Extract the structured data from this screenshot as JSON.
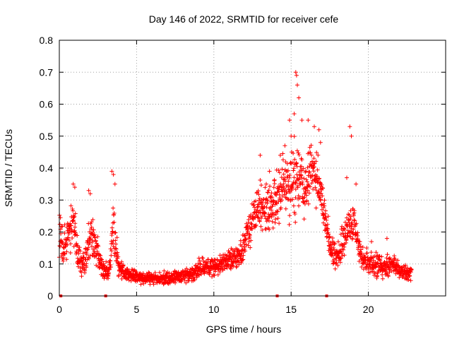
{
  "chart_data": {
    "type": "scatter",
    "title": "Day 146 of 2022, SRMTID for receiver cefe",
    "xlabel": "GPS time / hours",
    "ylabel": "SRMTID / TECUs",
    "xlim": [
      0,
      25
    ],
    "ylim": [
      0,
      0.8
    ],
    "xticks": [
      0,
      5,
      10,
      15,
      20
    ],
    "yticks": [
      0,
      0.1,
      0.2,
      0.3,
      0.4,
      0.5,
      0.6,
      0.7,
      0.8
    ],
    "xtick_labels": [
      "0",
      "5",
      "10",
      "15",
      "20"
    ],
    "ytick_labels": [
      "0",
      "0.1",
      "0.2",
      "0.3",
      "0.4",
      "0.5",
      "0.6",
      "0.7",
      "0.8"
    ],
    "grid": true,
    "marker": "+",
    "color": "#ff0000",
    "series": [
      {
        "name": "SRMTID",
        "envelope": {
          "x": [
            0,
            0.3,
            0.6,
            0.9,
            1.2,
            1.6,
            2.0,
            2.4,
            2.8,
            3.2,
            3.5,
            3.8,
            4.2,
            5,
            6,
            7,
            8,
            8.5,
            9,
            9.5,
            10,
            10.5,
            11,
            11.5,
            12,
            12.5,
            13,
            13.5,
            14,
            14.5,
            15,
            15.3,
            15.6,
            16,
            16.3,
            16.6,
            17,
            17.3,
            17.6,
            18,
            18.5,
            19,
            19.5,
            20,
            20.5,
            21,
            21.5,
            22,
            22.5,
            22.8
          ],
          "center": [
            0.18,
            0.15,
            0.2,
            0.25,
            0.12,
            0.1,
            0.2,
            0.15,
            0.08,
            0.07,
            0.2,
            0.1,
            0.07,
            0.06,
            0.055,
            0.055,
            0.06,
            0.07,
            0.09,
            0.09,
            0.09,
            0.1,
            0.12,
            0.11,
            0.16,
            0.25,
            0.28,
            0.27,
            0.3,
            0.33,
            0.35,
            0.38,
            0.36,
            0.33,
            0.4,
            0.38,
            0.3,
            0.22,
            0.14,
            0.13,
            0.2,
            0.24,
            0.13,
            0.1,
            0.1,
            0.09,
            0.1,
            0.08,
            0.075,
            0.07
          ],
          "spread": [
            0.07,
            0.07,
            0.07,
            0.08,
            0.05,
            0.04,
            0.08,
            0.06,
            0.03,
            0.03,
            0.1,
            0.04,
            0.025,
            0.02,
            0.02,
            0.02,
            0.02,
            0.025,
            0.035,
            0.03,
            0.035,
            0.035,
            0.04,
            0.04,
            0.05,
            0.07,
            0.08,
            0.08,
            0.08,
            0.1,
            0.12,
            0.15,
            0.13,
            0.1,
            0.12,
            0.1,
            0.08,
            0.07,
            0.05,
            0.05,
            0.07,
            0.08,
            0.05,
            0.04,
            0.04,
            0.035,
            0.04,
            0.03,
            0.03,
            0.025
          ]
        },
        "peaks": [
          {
            "x": 0.9,
            "y": 0.35
          },
          {
            "x": 1.0,
            "y": 0.34
          },
          {
            "x": 1.9,
            "y": 0.33
          },
          {
            "x": 2.0,
            "y": 0.32
          },
          {
            "x": 3.4,
            "y": 0.39
          },
          {
            "x": 3.5,
            "y": 0.38
          },
          {
            "x": 3.6,
            "y": 0.35
          },
          {
            "x": 13.0,
            "y": 0.44
          },
          {
            "x": 13.6,
            "y": 0.39
          },
          {
            "x": 14.3,
            "y": 0.44
          },
          {
            "x": 14.6,
            "y": 0.47
          },
          {
            "x": 15.0,
            "y": 0.5
          },
          {
            "x": 15.3,
            "y": 0.7
          },
          {
            "x": 15.35,
            "y": 0.69
          },
          {
            "x": 15.4,
            "y": 0.66
          },
          {
            "x": 15.5,
            "y": 0.62
          },
          {
            "x": 15.2,
            "y": 0.57
          },
          {
            "x": 14.9,
            "y": 0.55
          },
          {
            "x": 15.7,
            "y": 0.55
          },
          {
            "x": 16.1,
            "y": 0.55
          },
          {
            "x": 16.5,
            "y": 0.53
          },
          {
            "x": 16.8,
            "y": 0.52
          },
          {
            "x": 16.9,
            "y": 0.48
          },
          {
            "x": 18.8,
            "y": 0.53
          },
          {
            "x": 18.9,
            "y": 0.5
          },
          {
            "x": 18.6,
            "y": 0.37
          },
          {
            "x": 19.2,
            "y": 0.35
          },
          {
            "x": 21.2,
            "y": 0.18
          },
          {
            "x": 20.2,
            "y": 0.17
          }
        ],
        "baseline_markers": [
          {
            "x": 0.1,
            "y": 0
          },
          {
            "x": 3.0,
            "y": 0
          },
          {
            "x": 14.1,
            "y": 0
          },
          {
            "x": 17.3,
            "y": 0
          }
        ]
      }
    ]
  }
}
